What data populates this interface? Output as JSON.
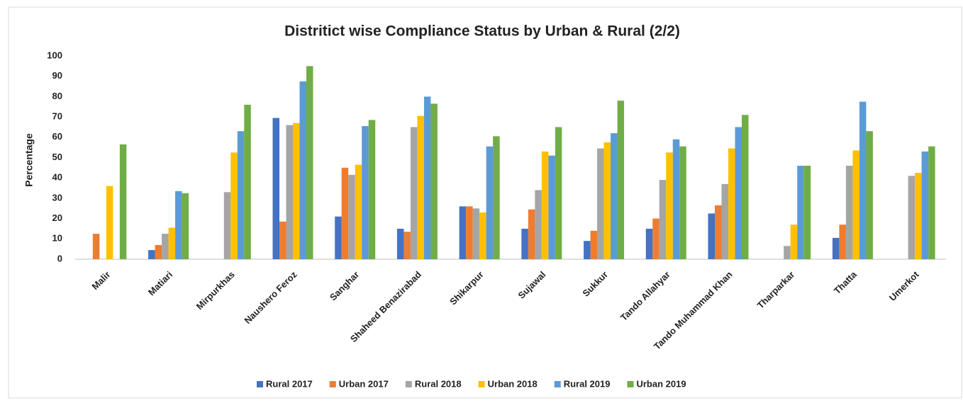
{
  "chart_data": {
    "type": "bar",
    "title": "Distritict wise Compliance Status by Urban & Rural (2/2)",
    "y_label": "Percentage",
    "categories": [
      "Malir",
      "Matiari",
      "Mirpurkhas",
      "Naushero Feroz",
      "Sanghar",
      "Shaheed Benazirabad",
      "Shikarpur",
      "Sujawal",
      "Sukkur",
      "Tando Allahyar",
      "Tando Muhammad Khan",
      "Tharparkar",
      "Thatta",
      "Umerkot"
    ],
    "series": [
      {
        "name": "Rural 2017",
        "color": "#4472c4",
        "values": [
          null,
          4.5,
          null,
          69.5,
          21,
          15,
          26,
          15,
          9,
          15,
          22.5,
          null,
          10.5,
          null
        ]
      },
      {
        "name": "Urban 2017",
        "color": "#ed7d31",
        "values": [
          12.5,
          7,
          null,
          18.5,
          45,
          13.5,
          26,
          24.5,
          14,
          20,
          26.5,
          null,
          17,
          null
        ]
      },
      {
        "name": "Rural 2018",
        "color": "#a5a5a5",
        "values": [
          null,
          12.5,
          33,
          66,
          41.5,
          65,
          25,
          34,
          54.5,
          39,
          37,
          6.5,
          46,
          41
        ]
      },
      {
        "name": "Urban 2018",
        "color": "#ffc000",
        "values": [
          36,
          15.5,
          52.5,
          67,
          46.5,
          70.5,
          23,
          53,
          57.5,
          52.5,
          54.5,
          17,
          53.5,
          42.5
        ]
      },
      {
        "name": "Rural 2019",
        "color": "#5b9bd5",
        "values": [
          null,
          33.5,
          63,
          87.5,
          65.5,
          80,
          55.5,
          51,
          62,
          59,
          65,
          46,
          77.5,
          53
        ]
      },
      {
        "name": "Urban 2019",
        "color": "#70ad47",
        "values": [
          56.5,
          32.5,
          76,
          95,
          68.5,
          76.5,
          60.5,
          65,
          78,
          55.5,
          71,
          46,
          63,
          55.5
        ]
      }
    ],
    "ylim": [
      0,
      100
    ],
    "yticks": [
      0,
      10,
      20,
      30,
      40,
      50,
      60,
      70,
      80,
      90,
      100
    ],
    "grid": false,
    "legend": "bottom"
  }
}
